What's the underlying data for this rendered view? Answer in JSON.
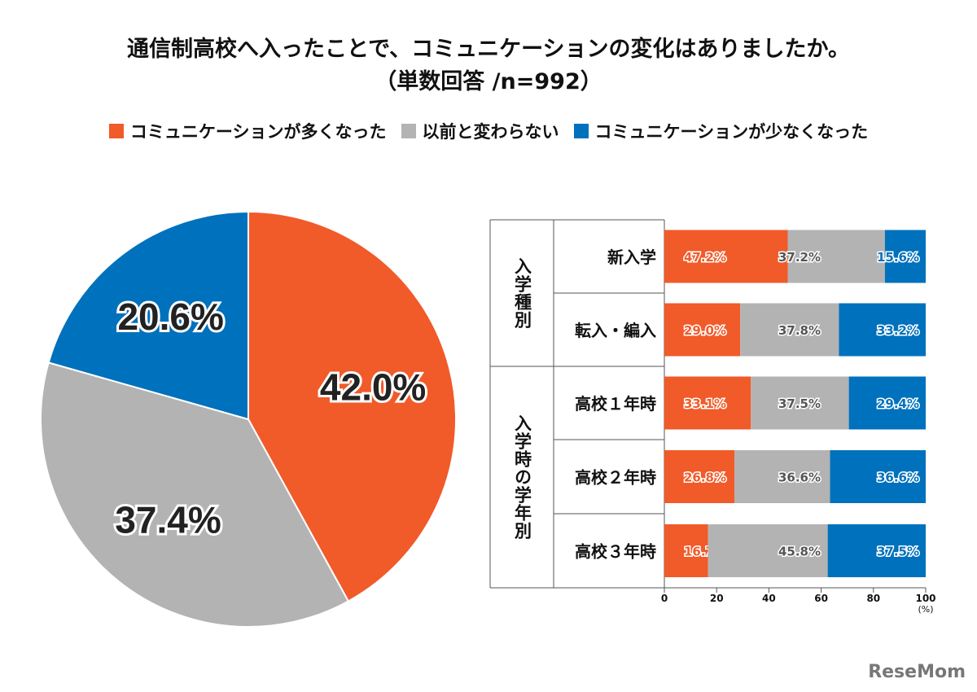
{
  "title_line1": "通信制高校へ入ったことで、コミュニケーションの変化はありましたか。",
  "title_line2": "（単数回答 /n=992）",
  "legend": [
    {
      "label": "コミュニケーションが多くなった",
      "color": "#F15A29"
    },
    {
      "label": "以前と変わらない",
      "color": "#B3B3B3"
    },
    {
      "label": "コミュニケーションが少なくなった",
      "color": "#0071BC"
    }
  ],
  "logo": "ReseMom",
  "chart_data": [
    {
      "type": "pie",
      "slices": [
        {
          "series": "コミュニケーションが多くなった",
          "value": 42.0,
          "label": "42.0%",
          "color": "#F15A29"
        },
        {
          "series": "以前と変わらない",
          "value": 37.4,
          "label": "37.4%",
          "color": "#B3B3B3"
        },
        {
          "series": "コミュニケーションが少なくなった",
          "value": 20.6,
          "label": "20.6%",
          "color": "#0071BC"
        }
      ]
    },
    {
      "type": "bar",
      "orientation": "horizontal",
      "stacked": true,
      "groups": [
        {
          "label": "入学種別",
          "categories": [
            "新入学",
            "転入・編入"
          ]
        },
        {
          "label": "入学時の学年別",
          "categories": [
            "高校１年時",
            "高校２年時",
            "高校３年時"
          ]
        }
      ],
      "categories": [
        "新入学",
        "転入・編入",
        "高校１年時",
        "高校２年時",
        "高校３年時"
      ],
      "series": [
        {
          "name": "コミュニケーションが多くなった",
          "color": "#F15A29",
          "values": [
            47.2,
            29.0,
            33.1,
            26.8,
            16.7
          ]
        },
        {
          "name": "以前と変わらない",
          "color": "#B3B3B3",
          "values": [
            37.2,
            37.8,
            37.5,
            36.6,
            45.8
          ]
        },
        {
          "name": "コミュニケーションが少なくなった",
          "color": "#0071BC",
          "values": [
            15.6,
            33.2,
            29.4,
            36.6,
            37.5
          ]
        }
      ],
      "xlim": [
        0,
        100
      ],
      "xticks": [
        "0",
        "20",
        "40",
        "60",
        "80",
        "100"
      ],
      "xunit": "(%)",
      "grid": false
    }
  ]
}
